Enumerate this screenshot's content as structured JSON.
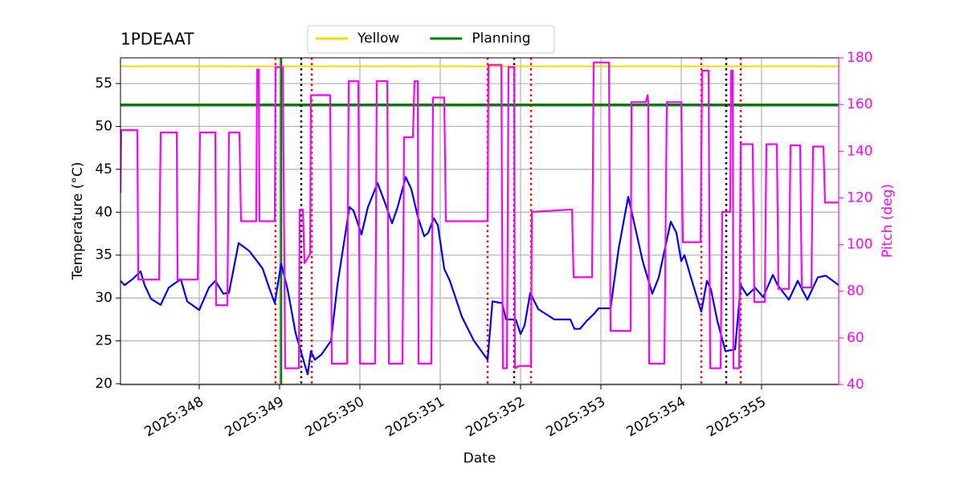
{
  "chart_data": {
    "type": "line",
    "title": "1PDEAAT",
    "xlabel": "Date",
    "ylabel": "Temperature (°C)",
    "y2label": "Pitch (deg)",
    "xlim": [
      347.02,
      355.96
    ],
    "xticks": [
      {
        "value": 348,
        "label": "2025:348"
      },
      {
        "value": 349,
        "label": "2025:349"
      },
      {
        "value": 350,
        "label": "2025:350"
      },
      {
        "value": 351,
        "label": "2025:351"
      },
      {
        "value": 352,
        "label": "2025:352"
      },
      {
        "value": 353,
        "label": "2025:353"
      },
      {
        "value": 354,
        "label": "2025:354"
      },
      {
        "value": 355,
        "label": "2025:355"
      }
    ],
    "ylim": [
      19.9,
      58
    ],
    "yticks": [
      20,
      25,
      30,
      35,
      40,
      45,
      50,
      55
    ],
    "y2lim": [
      40,
      180
    ],
    "y2ticks": [
      40,
      60,
      80,
      100,
      120,
      140,
      160,
      180
    ],
    "y2color": "#ff00ff",
    "grid": true,
    "legend": "top",
    "hlines": [
      {
        "name": "Yellow",
        "value": 57,
        "color": "#ffd700"
      },
      {
        "name": "Planning",
        "value": 52.5,
        "color": "#008000"
      }
    ],
    "vlines": [
      {
        "x": 349.02,
        "color": "#008000",
        "style": "solid"
      },
      {
        "x": 348.95,
        "color": "#ff0000",
        "style": "dotted"
      },
      {
        "x": 349.4,
        "color": "#ff0000",
        "style": "dotted"
      },
      {
        "x": 351.59,
        "color": "#ff0000",
        "style": "dotted"
      },
      {
        "x": 352.13,
        "color": "#ff0000",
        "style": "dotted"
      },
      {
        "x": 354.25,
        "color": "#ff0000",
        "style": "dotted"
      },
      {
        "x": 354.74,
        "color": "#ff0000",
        "style": "dotted"
      },
      {
        "x": 349.27,
        "color": "#000000",
        "style": "dotted"
      },
      {
        "x": 351.92,
        "color": "#000000",
        "style": "dotted"
      },
      {
        "x": 354.56,
        "color": "#000000",
        "style": "dotted"
      }
    ],
    "series": [
      {
        "color": "#0000ff",
        "axis": "y",
        "x": [
          347.02,
          347.07,
          347.17,
          347.27,
          347.32,
          347.4,
          347.52,
          347.62,
          347.77,
          347.85,
          348.0,
          348.12,
          348.2,
          348.3,
          348.37,
          348.49,
          348.62,
          348.72,
          348.79,
          348.87,
          348.94,
          349.02,
          349.1,
          349.2,
          349.27,
          349.35,
          349.39,
          349.44,
          349.52,
          349.64,
          349.72,
          349.87,
          349.92,
          350.02,
          350.1,
          350.22,
          350.32,
          350.4,
          350.47,
          350.57,
          350.64,
          350.72,
          350.8,
          350.85,
          350.92,
          350.97,
          351.05,
          351.12,
          351.27,
          351.42,
          351.59,
          351.65,
          351.77,
          351.82,
          351.94,
          352.0,
          352.05,
          352.12,
          352.22,
          352.42,
          352.62,
          352.67,
          352.74,
          352.82,
          352.92,
          352.97,
          353.12,
          353.22,
          353.34,
          353.42,
          353.52,
          353.64,
          353.72,
          353.87,
          353.94,
          354.0,
          354.04,
          354.12,
          354.25,
          354.32,
          354.37,
          354.45,
          354.55,
          354.67,
          354.74,
          354.82,
          354.92,
          355.02,
          355.14,
          355.2,
          355.34,
          355.45,
          355.57,
          355.7,
          355.8,
          355.96
        ],
        "values": [
          32.0,
          31.5,
          32.2,
          33.1,
          31.5,
          29.9,
          29.2,
          31.2,
          32.2,
          29.6,
          28.6,
          31.2,
          32.0,
          30.5,
          30.6,
          36.4,
          35.5,
          34.3,
          33.4,
          31.2,
          29.4,
          34.0,
          31.0,
          25.9,
          23.6,
          21.1,
          23.8,
          22.8,
          23.4,
          25.0,
          31.5,
          40.6,
          40.2,
          37.4,
          40.6,
          43.4,
          40.9,
          38.7,
          40.6,
          44.1,
          42.7,
          39.5,
          37.2,
          37.6,
          39.3,
          38.5,
          33.4,
          32.0,
          27.8,
          25.0,
          22.8,
          29.6,
          29.4,
          27.5,
          27.5,
          25.8,
          26.8,
          30.6,
          28.7,
          27.5,
          27.5,
          26.4,
          26.4,
          27.3,
          28.2,
          28.8,
          28.8,
          35.7,
          41.8,
          38.5,
          34.3,
          30.5,
          32.4,
          38.9,
          37.6,
          34.3,
          35.0,
          32.4,
          28.4,
          32.0,
          31.0,
          27.3,
          23.8,
          24.0,
          31.5,
          30.3,
          31.2,
          30.1,
          32.7,
          31.5,
          29.8,
          32.0,
          29.8,
          32.4,
          32.6,
          31.5
        ]
      },
      {
        "color": "#ff00ff",
        "axis": "y2",
        "x": [
          347.02,
          347.03,
          347.23,
          347.24,
          347.5,
          347.52,
          347.72,
          347.73,
          347.98,
          348.01,
          348.2,
          348.21,
          348.35,
          348.37,
          348.5,
          348.52,
          348.71,
          348.72,
          348.74,
          348.75,
          348.94,
          348.95,
          349.04,
          349.07,
          349.24,
          349.25,
          349.29,
          349.31,
          349.38,
          349.39,
          349.63,
          349.65,
          349.84,
          349.86,
          349.98,
          350.0,
          350.19,
          350.21,
          350.34,
          350.36,
          350.53,
          350.55,
          350.66,
          350.68,
          350.72,
          350.73,
          350.89,
          350.91,
          351.05,
          351.07,
          351.59,
          351.6,
          351.76,
          351.78,
          351.83,
          351.85,
          351.92,
          351.93,
          351.98,
          352.13,
          352.14,
          352.64,
          352.66,
          352.89,
          352.91,
          353.1,
          353.12,
          353.37,
          353.38,
          353.56,
          353.58,
          353.59,
          353.6,
          353.79,
          353.82,
          354.0,
          354.02,
          354.24,
          354.26,
          354.34,
          354.36,
          354.49,
          354.51,
          354.61,
          354.62,
          354.64,
          354.65,
          354.72,
          354.74,
          354.89,
          354.91,
          355.04,
          355.06,
          355.19,
          355.21,
          355.34,
          355.36,
          355.48,
          355.5,
          355.62,
          355.64,
          355.77,
          355.79,
          355.96
        ],
        "values": [
          122,
          149,
          149,
          85,
          85,
          148,
          148,
          85,
          85,
          148,
          148,
          74,
          74,
          148,
          148,
          110,
          110,
          175,
          175,
          110,
          110,
          176,
          176,
          47,
          47,
          115,
          115,
          92,
          96,
          164,
          164,
          49,
          49,
          170,
          170,
          49,
          49,
          170,
          170,
          49,
          49,
          146,
          146,
          170,
          170,
          49,
          49,
          163,
          163,
          110,
          110,
          177,
          177,
          47,
          47,
          176,
          176,
          47,
          48,
          48,
          114,
          115,
          86,
          86,
          178,
          178,
          63,
          63,
          161,
          161,
          164,
          161,
          49,
          49,
          161,
          161,
          101,
          101,
          174.5,
          174.5,
          47,
          47,
          114,
          114,
          174.5,
          174.5,
          47,
          47,
          143,
          143,
          75.4,
          75.4,
          143,
          143,
          81,
          81,
          142.5,
          142.5,
          81.6,
          81.6,
          142,
          142,
          118,
          118
        ]
      }
    ]
  }
}
